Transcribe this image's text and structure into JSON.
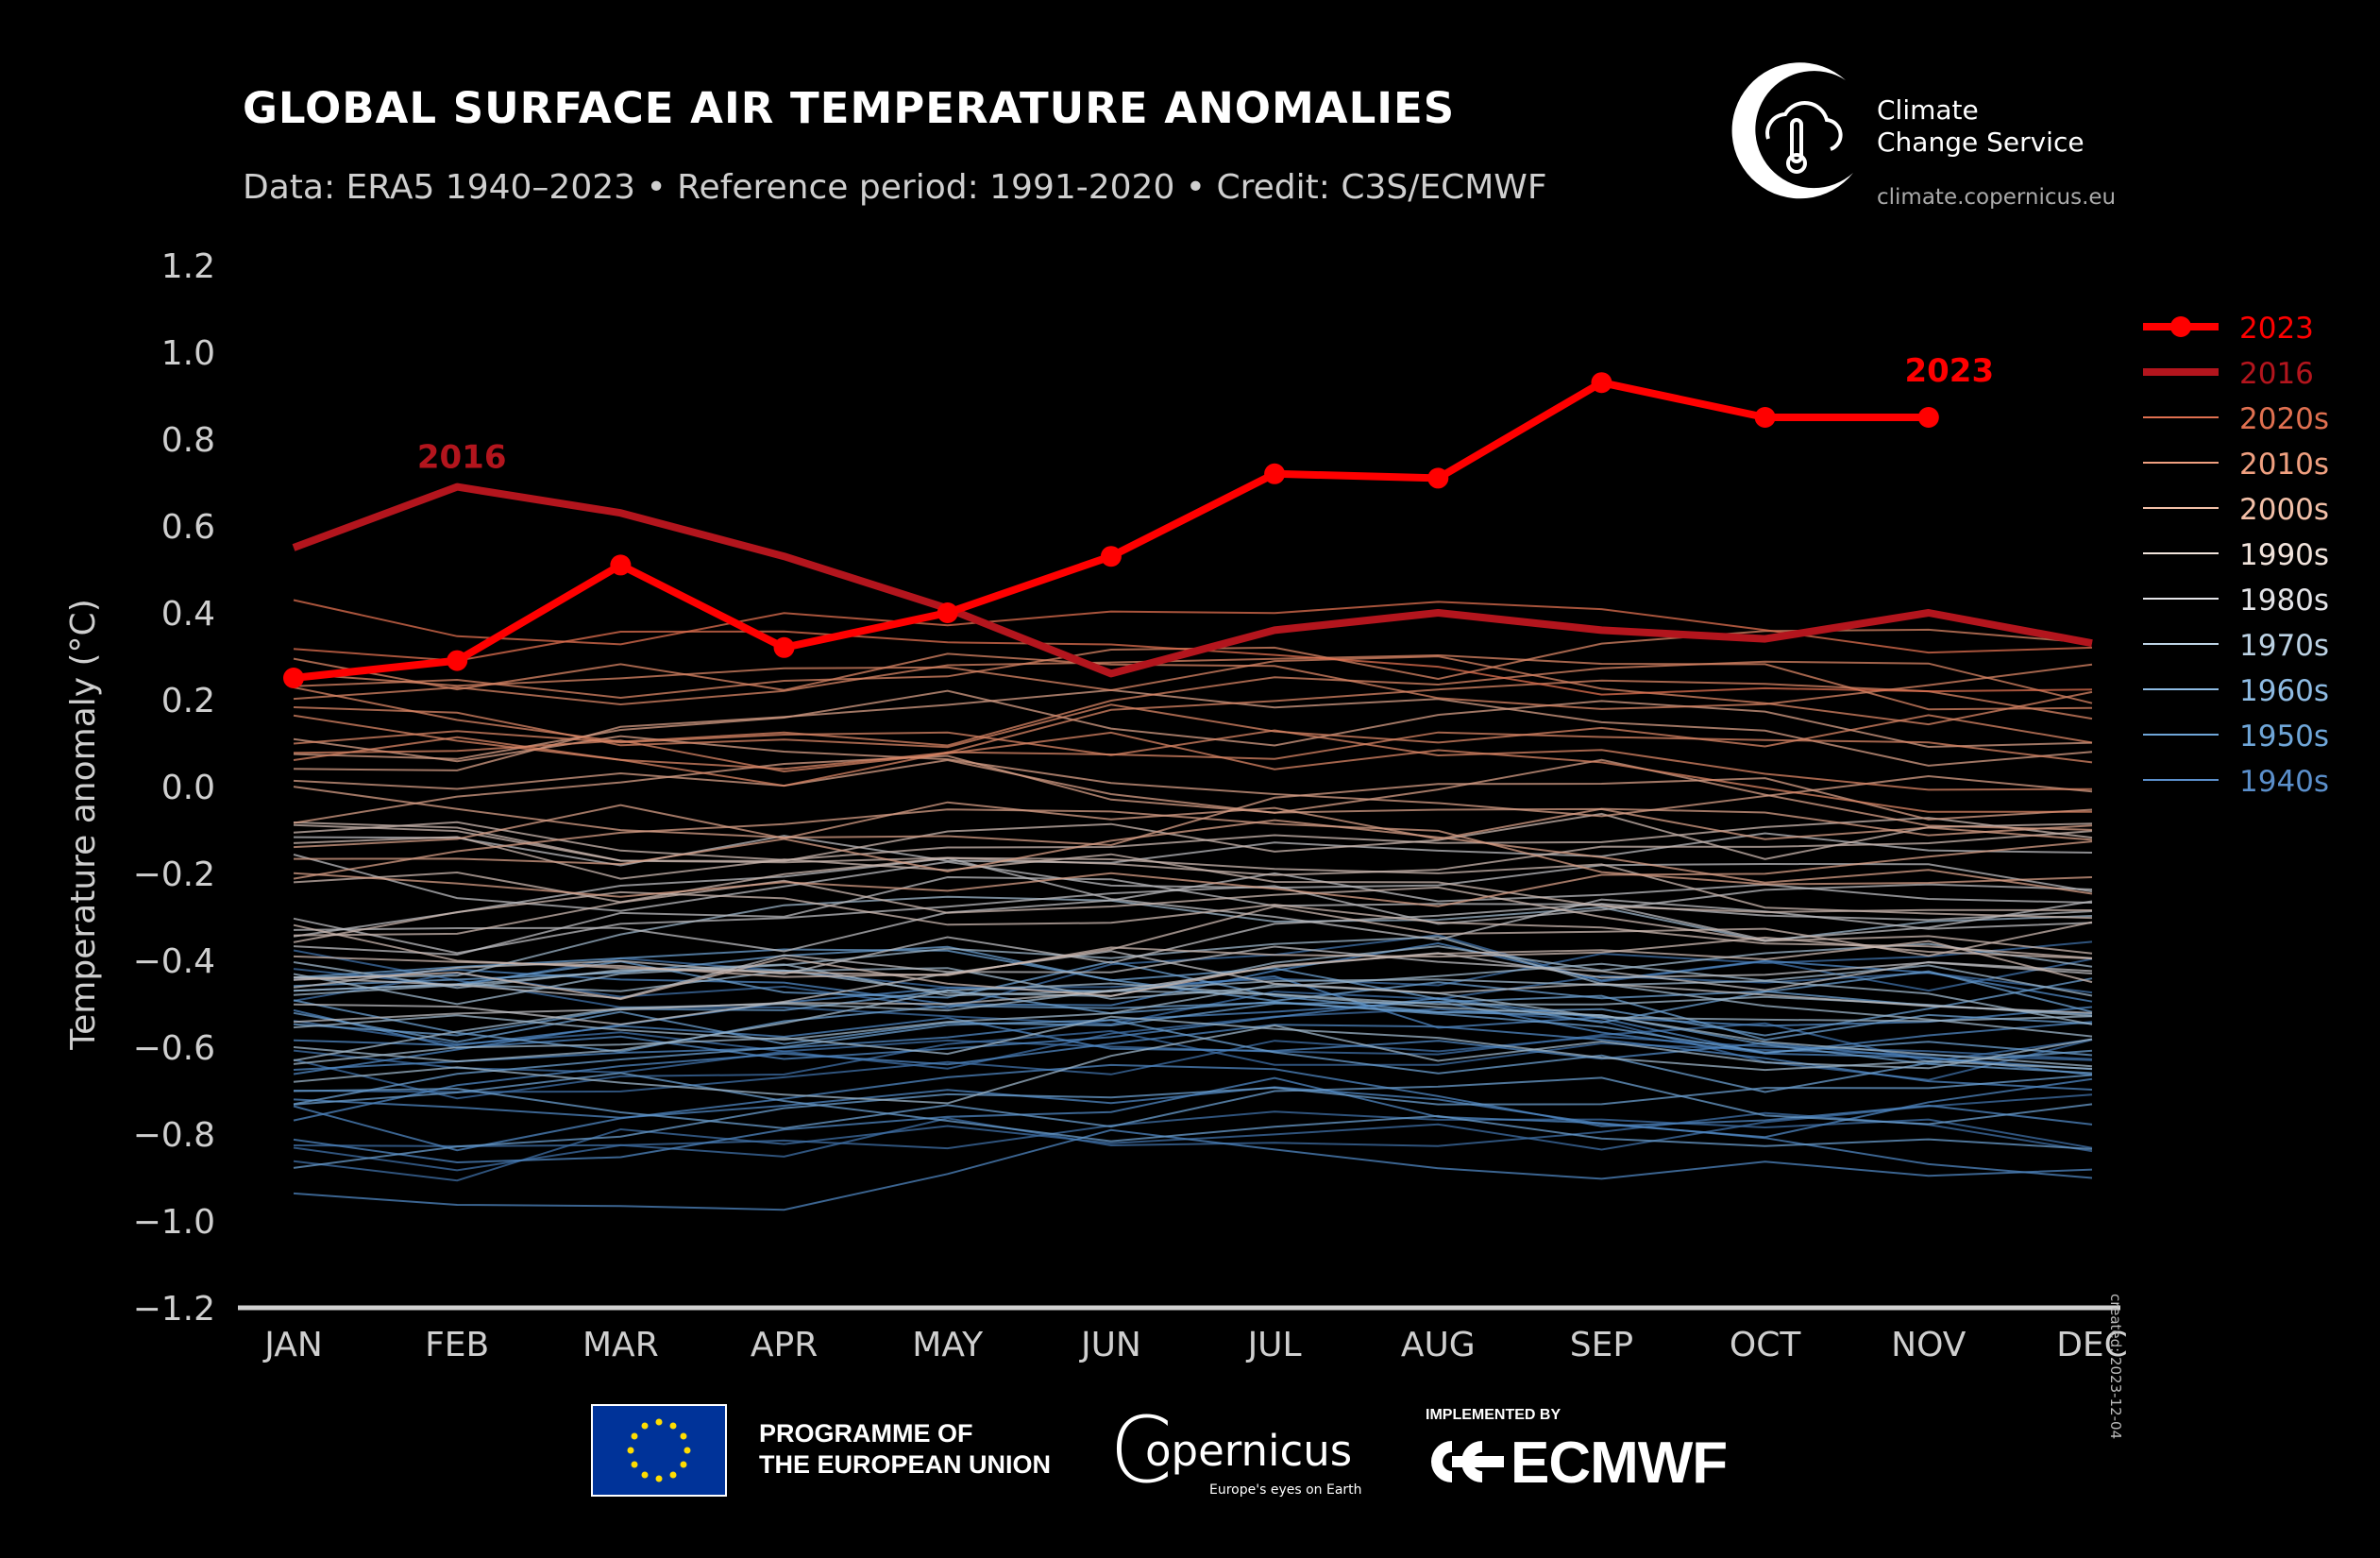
{
  "header": {
    "title": "GLOBAL SURFACE AIR TEMPERATURE ANOMALIES",
    "subtitle": "Data: ERA5 1940–2023 • Reference period: 1991-2020 • Credit: C3S/ECMWF"
  },
  "branding": {
    "c3s_line1": "Climate",
    "c3s_line2": "Change Service",
    "c3s_url": "climate.copernicus.eu",
    "eu_line1": "PROGRAMME OF",
    "eu_line2": "THE EUROPEAN UNION",
    "copernicus": "opernicus",
    "copernicus_c": "C",
    "copernicus_tagline": "Europe's eyes on Earth",
    "implemented_by": "IMPLEMENTED BY",
    "ecmwf": "ECMWF"
  },
  "created": "created: 2023-12-04",
  "colors": {
    "background": "#000000",
    "y2023": "#ff0000",
    "y2016": "#b3151d"
  },
  "chart_data": {
    "type": "line",
    "ylabel": "Temperature anomaly (°C)",
    "xlabel": "",
    "ylim": [
      -1.2,
      1.2
    ],
    "yticks": [
      "1.2",
      "1.0",
      "0.8",
      "0.6",
      "0.4",
      "0.2",
      "0.0",
      "−0.2",
      "−0.4",
      "−0.6",
      "−0.8",
      "−1.0",
      "−1.2"
    ],
    "ytick_values": [
      1.2,
      1.0,
      0.8,
      0.6,
      0.4,
      0.2,
      0.0,
      -0.2,
      -0.4,
      -0.6,
      -0.8,
      -1.0,
      -1.2
    ],
    "categories": [
      "JAN",
      "FEB",
      "MAR",
      "APR",
      "MAY",
      "JUN",
      "JUL",
      "AUG",
      "SEP",
      "OCT",
      "NOV",
      "DEC"
    ],
    "grid": false,
    "legend_position": "right",
    "highlight_series": [
      {
        "name": "2016",
        "color": "#b3151d",
        "values": [
          0.55,
          0.69,
          0.63,
          0.53,
          0.41,
          0.26,
          0.36,
          0.4,
          0.36,
          0.34,
          0.4,
          0.33
        ],
        "label": "2016"
      },
      {
        "name": "2023",
        "color": "#ff0000",
        "values": [
          0.25,
          0.29,
          0.51,
          0.32,
          0.4,
          0.53,
          0.72,
          0.71,
          0.93,
          0.85,
          0.85
        ],
        "label": "2023"
      }
    ],
    "decade_bands": [
      {
        "name": "1940s",
        "color": "#3f6fa6",
        "mean": -0.62,
        "spread": 0.22
      },
      {
        "name": "1950s",
        "color": "#4f86c0",
        "mean": -0.66,
        "spread": 0.2
      },
      {
        "name": "1960s",
        "color": "#6a9ccc",
        "mean": -0.62,
        "spread": 0.18
      },
      {
        "name": "1970s",
        "color": "#9bb3c7",
        "mean": -0.56,
        "spread": 0.22
      },
      {
        "name": "1980s",
        "color": "#b9b9bd",
        "mean": -0.35,
        "spread": 0.2
      },
      {
        "name": "1990s",
        "color": "#c9b6ae",
        "mean": -0.24,
        "spread": 0.2
      },
      {
        "name": "2000s",
        "color": "#d69d86",
        "mean": -0.02,
        "spread": 0.18
      },
      {
        "name": "2010s",
        "color": "#d98566",
        "mean": 0.14,
        "spread": 0.18
      },
      {
        "name": "2020s",
        "color": "#e07050",
        "mean": 0.3,
        "spread": 0.12
      }
    ],
    "legend": [
      {
        "name": "2023",
        "color": "#ff0000",
        "style": "marker"
      },
      {
        "name": "2016",
        "color": "#b3151d",
        "style": "thick"
      },
      {
        "name": "2020s",
        "color": "#e07050",
        "style": "thin"
      },
      {
        "name": "2010s",
        "color": "#f0a080",
        "style": "thin"
      },
      {
        "name": "2000s",
        "color": "#f3c0a8",
        "style": "thin"
      },
      {
        "name": "1990s",
        "color": "#f2e4dc",
        "style": "thin"
      },
      {
        "name": "1980s",
        "color": "#e4e4e8",
        "style": "thin"
      },
      {
        "name": "1970s",
        "color": "#bcd2e4",
        "style": "thin"
      },
      {
        "name": "1960s",
        "color": "#8ebbe3",
        "style": "thin"
      },
      {
        "name": "1950s",
        "color": "#6fa6d8",
        "style": "thin"
      },
      {
        "name": "1940s",
        "color": "#5b8fcb",
        "style": "thin"
      }
    ]
  }
}
